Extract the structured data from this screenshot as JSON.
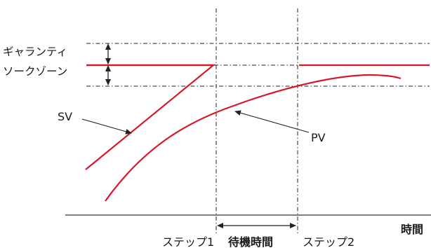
{
  "labels": {
    "guarantee_line1": "ギャランティ",
    "guarantee_line2": "ソークゾーン",
    "sv": "SV",
    "pv": "PV",
    "time_axis": "時間",
    "step1": "ステップ1",
    "wait_time": "待機時間",
    "step2": "ステップ2"
  },
  "colors": {
    "curve": "#d7182a",
    "guide": "#222222",
    "axis": "#000000"
  }
}
